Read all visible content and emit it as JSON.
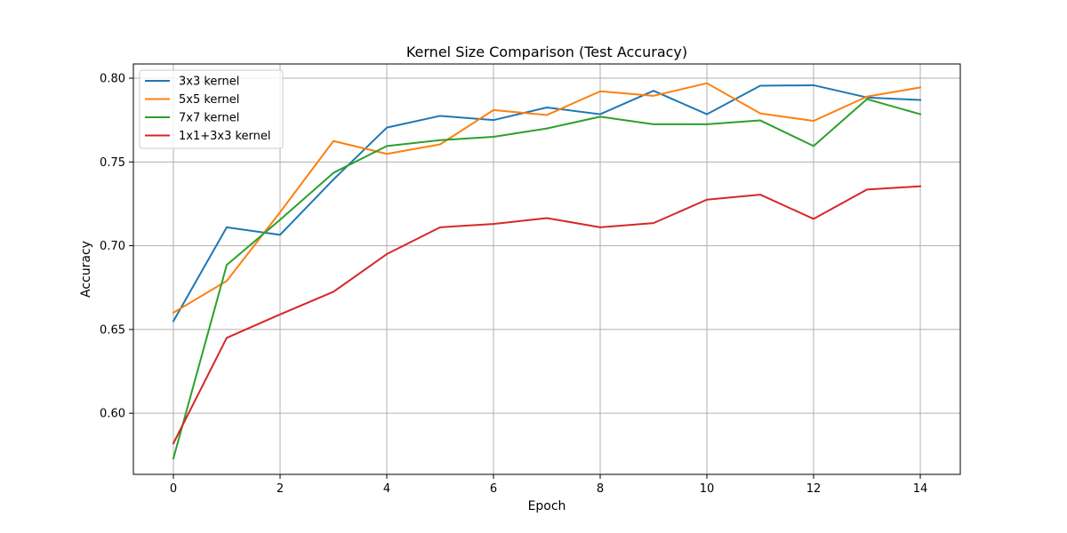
{
  "chart_data": {
    "type": "line",
    "title": "Kernel Size Comparison (Test Accuracy)",
    "xlabel": "Epoch",
    "ylabel": "Accuracy",
    "xlim": [
      -0.75,
      14.75
    ],
    "ylim": [
      0.5635,
      0.8085
    ],
    "xticks": [
      0,
      2,
      4,
      6,
      8,
      10,
      12,
      14
    ],
    "yticks": [
      0.6,
      0.65,
      0.7,
      0.75,
      0.8
    ],
    "grid": true,
    "legend_position": "top-left",
    "x": [
      0,
      1,
      2,
      3,
      4,
      5,
      6,
      7,
      8,
      9,
      10,
      11,
      12,
      13,
      14
    ],
    "series": [
      {
        "name": "3x3 kernel",
        "color": "#1f77b4",
        "values": [
          0.655,
          0.711,
          0.7065,
          0.7395,
          0.7705,
          0.7775,
          0.775,
          0.7825,
          0.7785,
          0.7925,
          0.7785,
          0.7955,
          0.7958,
          0.7885,
          0.787
        ]
      },
      {
        "name": "5x5 kernel",
        "color": "#ff7f0e",
        "values": [
          0.66,
          0.679,
          0.72,
          0.7625,
          0.7548,
          0.7605,
          0.781,
          0.778,
          0.7922,
          0.7895,
          0.797,
          0.779,
          0.7745,
          0.789,
          0.7945
        ]
      },
      {
        "name": "7x7 kernel",
        "color": "#2ca02c",
        "values": [
          0.573,
          0.6885,
          0.7155,
          0.7435,
          0.7595,
          0.763,
          0.765,
          0.77,
          0.777,
          0.7725,
          0.7725,
          0.7748,
          0.7595,
          0.7875,
          0.7785
        ]
      },
      {
        "name": "1x1+3x3 kernel",
        "color": "#d62728",
        "values": [
          0.582,
          0.645,
          0.659,
          0.6725,
          0.695,
          0.711,
          0.713,
          0.7165,
          0.711,
          0.7135,
          0.7275,
          0.7305,
          0.716,
          0.7335,
          0.7355
        ]
      }
    ]
  }
}
